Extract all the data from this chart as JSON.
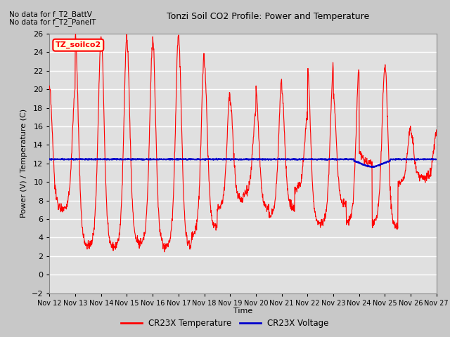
{
  "title": "Tonzi Soil CO2 Profile: Power and Temperature",
  "subtitle_lines": [
    "No data for f_T2_BattV",
    "No data for f_T2_PanelT"
  ],
  "legend_label": "TZ_soilco2",
  "ylabel": "Power (V) / Temperature (C)",
  "xlabel": "Time",
  "ylim": [
    -2,
    26
  ],
  "yticks": [
    -2,
    0,
    2,
    4,
    6,
    8,
    10,
    12,
    14,
    16,
    18,
    20,
    22,
    24,
    26
  ],
  "xtick_labels": [
    "Nov 12",
    "Nov 13",
    "Nov 14",
    "Nov 15",
    "Nov 16",
    "Nov 17",
    "Nov 18",
    "Nov 19",
    "Nov 20",
    "Nov 21",
    "Nov 22",
    "Nov 23",
    "Nov 24",
    "Nov 25",
    "Nov 26",
    "Nov 27"
  ],
  "voltage_value": 12.45,
  "temp_color": "#ff0000",
  "voltage_color": "#0000cc",
  "bg_color": "#e0e0e0",
  "grid_color": "#ffffff",
  "legend_item1": "CR23X Temperature",
  "legend_item2": "CR23X Voltage",
  "fig_bg": "#c8c8c8",
  "n_days": 15,
  "n_points": 1440
}
